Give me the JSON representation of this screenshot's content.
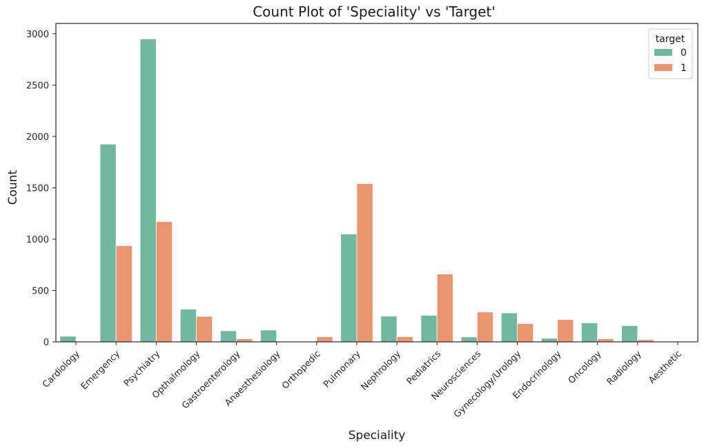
{
  "colors": {
    "target_0": "#72b7a0",
    "target_1": "#ea9470",
    "axis": "#262626",
    "background": "#ffffff"
  },
  "chart_data": {
    "type": "bar",
    "title": "Count Plot of 'Speciality' vs 'Target'",
    "xlabel": "Speciality",
    "ylabel": "Count",
    "ylim": [
      0,
      3100
    ],
    "yticks": [
      0,
      500,
      1000,
      1500,
      2000,
      2500,
      3000
    ],
    "grid": false,
    "legend_position": "top-right",
    "legend_title": "target",
    "categories": [
      "Cardiology",
      "Emergency",
      "Psychiatry",
      "Opthalmology",
      "Gastroenterology",
      "Anaesthesiology",
      "Orthopedic",
      "Pulmonary",
      "Nephrology",
      "Pediatrics",
      "Neurosciences",
      "Gynecology/Urology",
      "Endocrinology",
      "Oncology",
      "Radiology",
      "Aesthetic"
    ],
    "series": [
      {
        "name": "0",
        "color": "#72b7a0",
        "values": [
          55,
          1925,
          2950,
          318,
          108,
          115,
          0,
          1050,
          250,
          258,
          48,
          282,
          35,
          185,
          158,
          5
        ]
      },
      {
        "name": "1",
        "color": "#ea9470",
        "values": [
          0,
          935,
          1170,
          248,
          30,
          0,
          50,
          1540,
          50,
          660,
          290,
          178,
          218,
          30,
          22,
          0
        ]
      }
    ]
  }
}
